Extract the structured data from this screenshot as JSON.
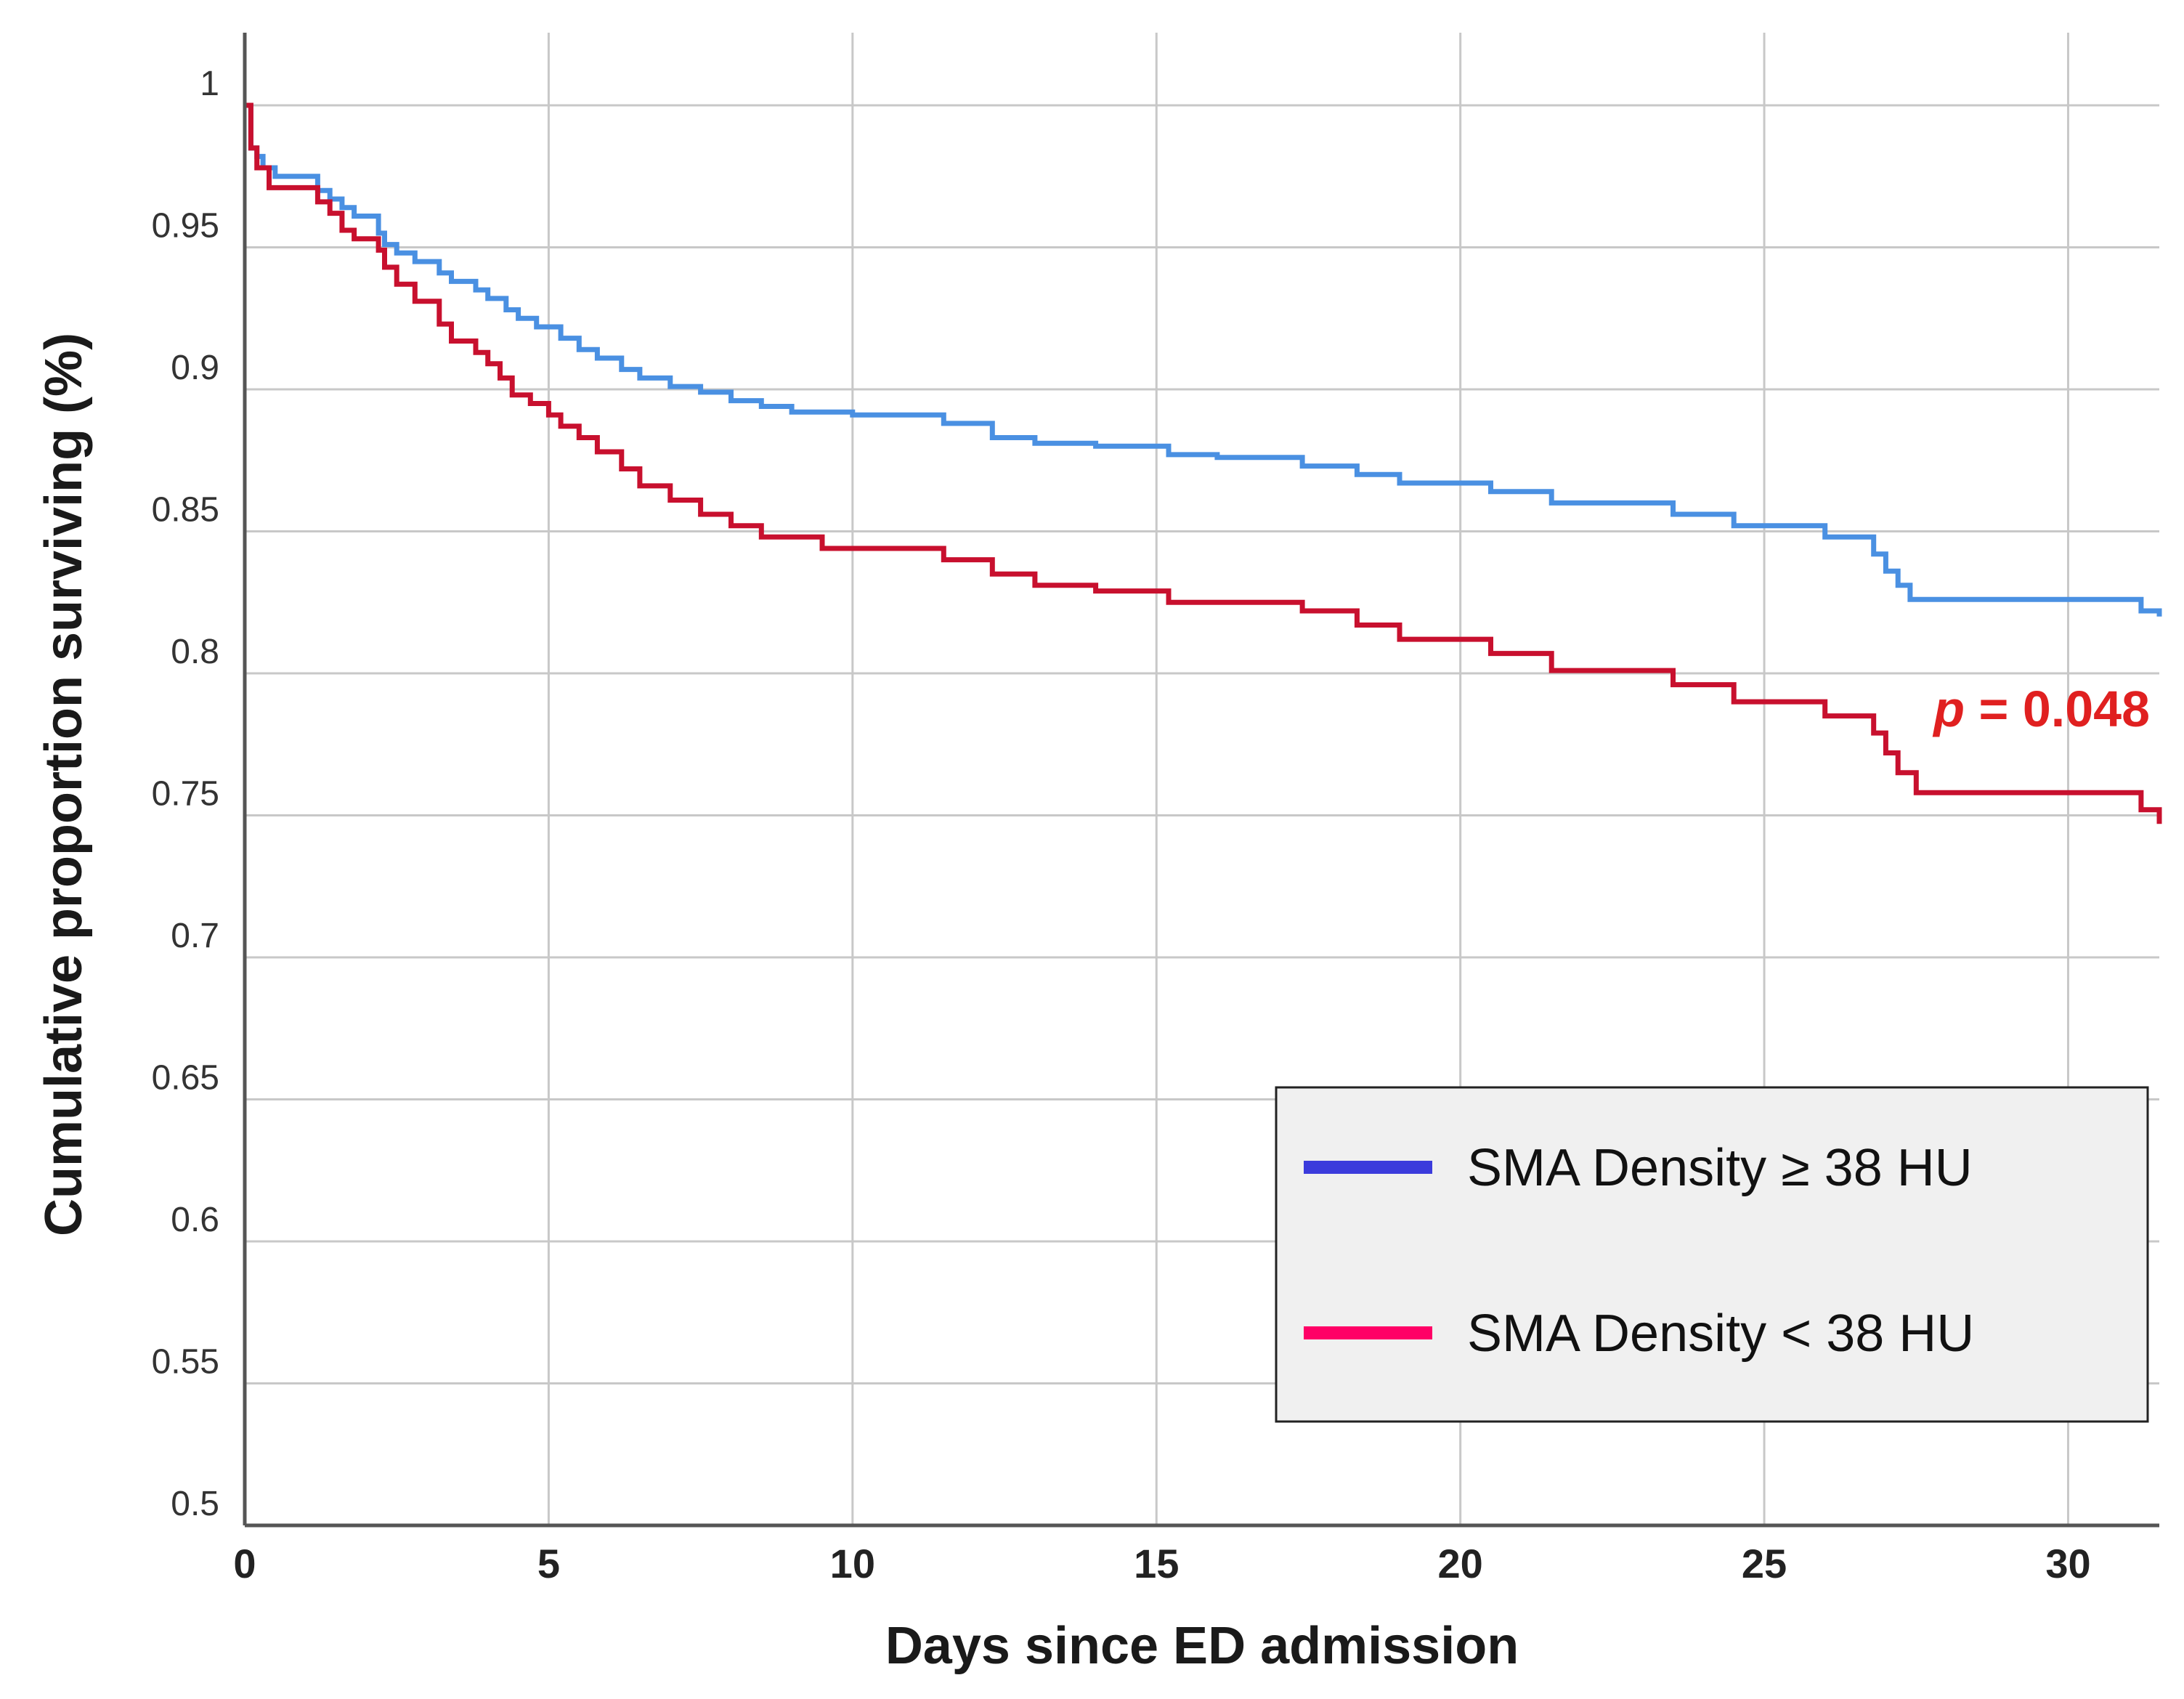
{
  "chart_data": {
    "type": "line",
    "subtype": "step",
    "xlabel": "Days since ED admission",
    "ylabel": "Cumulative proportion surviving (%)",
    "xlim": [
      0,
      31.5
    ],
    "ylim": [
      0.5,
      1.0
    ],
    "x_ticks": [
      0,
      5,
      10,
      15,
      20,
      25,
      30
    ],
    "y_ticks": [
      0.5,
      0.55,
      0.6,
      0.65,
      0.7,
      0.75,
      0.8,
      0.85,
      0.9,
      0.95,
      1
    ],
    "grid": true,
    "legend_position": "bottom-right",
    "annotation": {
      "italic": "p",
      "text": " = 0.048"
    },
    "series": [
      {
        "name": "SMA Density ≥ 38 HU",
        "color": "#4a90e2",
        "legend_color": "#3b3bdc",
        "x": [
          0,
          0.1,
          0.2,
          0.3,
          0.5,
          0.7,
          1.2,
          1.4,
          1.6,
          1.8,
          2.2,
          2.3,
          2.5,
          2.8,
          3.2,
          3.4,
          3.8,
          4.0,
          4.3,
          4.5,
          4.8,
          5.2,
          5.5,
          5.8,
          6.2,
          6.5,
          7.0,
          7.5,
          8.0,
          8.5,
          9.0,
          10.0,
          11.5,
          12.3,
          13.0,
          14.0,
          15.2,
          16.0,
          17.4,
          18.3,
          19.0,
          20.5,
          21.5,
          23.5,
          24.5,
          26.0,
          26.8,
          27.0,
          27.2,
          27.4,
          31.2,
          31.5
        ],
        "y": [
          1.0,
          0.985,
          0.982,
          0.978,
          0.975,
          0.975,
          0.97,
          0.967,
          0.964,
          0.961,
          0.955,
          0.951,
          0.948,
          0.945,
          0.941,
          0.938,
          0.935,
          0.932,
          0.928,
          0.925,
          0.922,
          0.918,
          0.914,
          0.911,
          0.907,
          0.904,
          0.901,
          0.899,
          0.896,
          0.894,
          0.892,
          0.891,
          0.888,
          0.883,
          0.881,
          0.88,
          0.877,
          0.876,
          0.873,
          0.87,
          0.867,
          0.864,
          0.86,
          0.856,
          0.852,
          0.848,
          0.842,
          0.836,
          0.831,
          0.826,
          0.822,
          0.82
        ]
      },
      {
        "name": "SMA Density < 38 HU",
        "color": "#c8102e",
        "legend_color": "#ff0066",
        "x": [
          0,
          0.1,
          0.2,
          0.4,
          1.2,
          1.4,
          1.6,
          1.8,
          2.2,
          2.3,
          2.5,
          2.8,
          3.2,
          3.4,
          3.8,
          4.0,
          4.2,
          4.4,
          4.7,
          5.0,
          5.2,
          5.5,
          5.8,
          6.2,
          6.5,
          7.0,
          7.5,
          8.0,
          8.5,
          9.5,
          11.5,
          12.3,
          13.0,
          14.0,
          15.2,
          17.4,
          18.3,
          19.0,
          20.5,
          21.5,
          23.5,
          24.5,
          26.0,
          26.8,
          27.0,
          27.2,
          27.5,
          31.2,
          31.5
        ],
        "y": [
          1.0,
          0.985,
          0.978,
          0.971,
          0.966,
          0.962,
          0.956,
          0.953,
          0.949,
          0.943,
          0.937,
          0.931,
          0.923,
          0.917,
          0.913,
          0.909,
          0.904,
          0.898,
          0.895,
          0.891,
          0.887,
          0.883,
          0.878,
          0.872,
          0.866,
          0.861,
          0.856,
          0.852,
          0.848,
          0.844,
          0.84,
          0.835,
          0.831,
          0.829,
          0.825,
          0.822,
          0.817,
          0.812,
          0.807,
          0.801,
          0.796,
          0.79,
          0.785,
          0.779,
          0.772,
          0.765,
          0.758,
          0.752,
          0.747
        ]
      }
    ]
  }
}
